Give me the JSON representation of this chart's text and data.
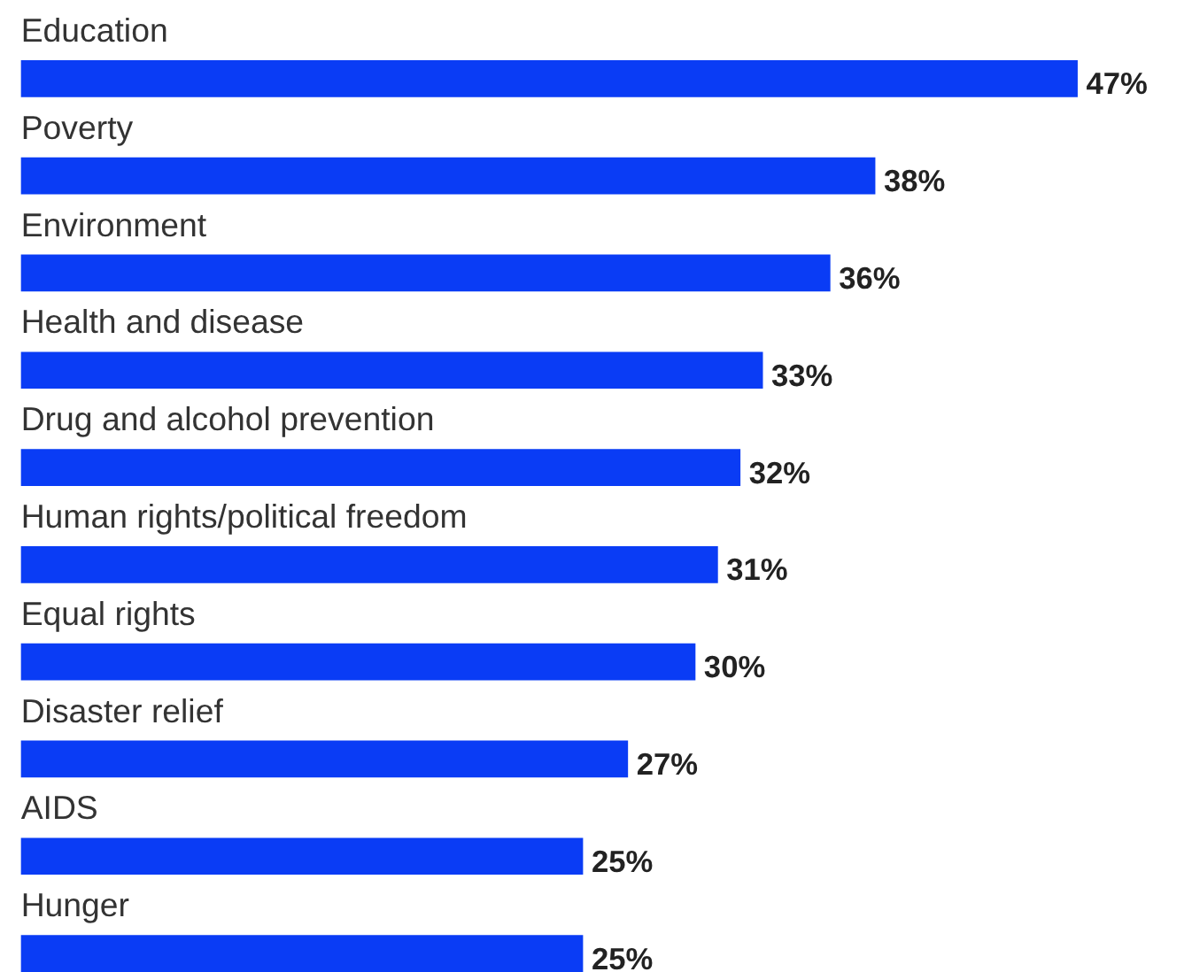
{
  "chart_data": {
    "type": "bar",
    "orientation": "horizontal",
    "categories": [
      "Education",
      "Poverty",
      "Environment",
      "Health and disease",
      "Drug and alcohol prevention",
      "Human rights/political freedom",
      "Equal rights",
      "Disaster relief",
      "AIDS",
      "Hunger"
    ],
    "values": [
      47,
      38,
      36,
      33,
      32,
      31,
      30,
      27,
      25,
      25
    ],
    "value_labels": [
      "47%",
      "38%",
      "36%",
      "33%",
      "32%",
      "31%",
      "30%",
      "27%",
      "25%",
      "25%"
    ],
    "color": "#0a3cf5",
    "grid": false
  }
}
